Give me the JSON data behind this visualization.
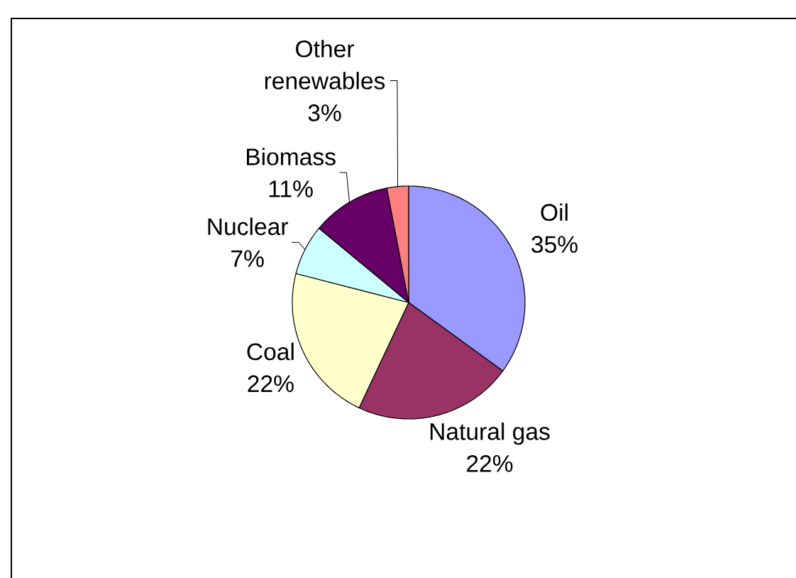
{
  "chart_data": {
    "type": "pie",
    "categories": [
      "Oil",
      "Natural gas",
      "Coal",
      "Nuclear",
      "Biomass",
      "Other renewables"
    ],
    "values": [
      35,
      22,
      22,
      7,
      11,
      3
    ],
    "value_labels": [
      "35%",
      "22%",
      "22%",
      "7%",
      "11%",
      "3%"
    ],
    "colors": [
      "#9999ff",
      "#993366",
      "#ffffcc",
      "#ccffff",
      "#660066",
      "#ff8080"
    ]
  }
}
